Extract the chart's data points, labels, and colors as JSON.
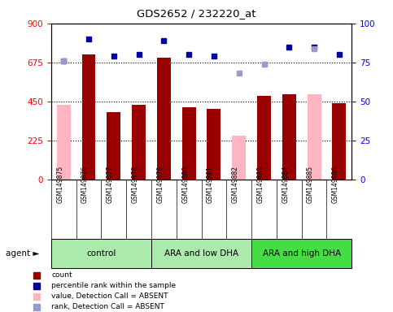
{
  "title": "GDS2652 / 232220_at",
  "samples": [
    "GSM149875",
    "GSM149876",
    "GSM149877",
    "GSM149878",
    "GSM149879",
    "GSM149880",
    "GSM149881",
    "GSM149882",
    "GSM149883",
    "GSM149884",
    "GSM149885",
    "GSM149886"
  ],
  "groups": [
    {
      "label": "control",
      "start": 0,
      "end": 4
    },
    {
      "label": "ARA and low DHA",
      "start": 4,
      "end": 8
    },
    {
      "label": "ARA and high DHA",
      "start": 8,
      "end": 12
    }
  ],
  "group_colors": [
    "#AAEAAA",
    "#AAEAAA",
    "#44DD44"
  ],
  "bar_values": [
    null,
    720,
    390,
    430,
    700,
    415,
    405,
    null,
    480,
    490,
    null,
    440
  ],
  "absent_values": [
    430,
    null,
    null,
    null,
    null,
    null,
    null,
    250,
    null,
    null,
    490,
    null
  ],
  "percentile_rank": [
    76,
    90,
    79,
    80,
    89,
    80,
    79,
    null,
    null,
    85,
    85,
    80
  ],
  "absent_rank": [
    76,
    null,
    null,
    null,
    null,
    null,
    null,
    68,
    74,
    null,
    84,
    null
  ],
  "ylim_left": [
    0,
    900
  ],
  "ylim_right": [
    0,
    100
  ],
  "yticks_left": [
    0,
    225,
    450,
    675,
    900
  ],
  "yticks_right": [
    0,
    25,
    50,
    75,
    100
  ],
  "bar_color": "#990000",
  "absent_bar_color": "#FFB6C1",
  "rank_color": "#000099",
  "absent_rank_color": "#9999CC",
  "xlbl_bg": "#C8C8C8",
  "legend": [
    {
      "color": "#990000",
      "label": "count"
    },
    {
      "color": "#000099",
      "label": "percentile rank within the sample"
    },
    {
      "color": "#FFB6C1",
      "label": "value, Detection Call = ABSENT"
    },
    {
      "color": "#9999CC",
      "label": "rank, Detection Call = ABSENT"
    }
  ]
}
